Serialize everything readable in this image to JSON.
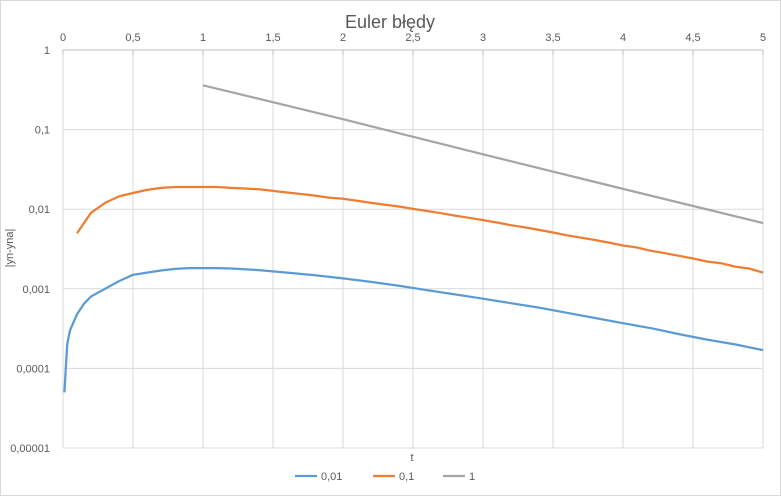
{
  "chart_data": {
    "type": "line",
    "title": "Euler błędy",
    "xlabel": "t",
    "ylabel": "|yn-yna|",
    "y_scale": "log10",
    "xlim": [
      0,
      5
    ],
    "ylim": [
      1e-05,
      1
    ],
    "x_ticks": [
      "0",
      "0,5",
      "1",
      "1,5",
      "2",
      "2,5",
      "3",
      "3,5",
      "4",
      "4,5",
      "5"
    ],
    "y_ticks": [
      "1",
      "0,1",
      "0,01",
      "0,001",
      "0,0001",
      "0,00001"
    ],
    "grid": true,
    "legend_position": "bottom",
    "series": [
      {
        "name": "0,01",
        "color": "#5B9BD5",
        "x": [
          0.01,
          0.02,
          0.03,
          0.05,
          0.1,
          0.15,
          0.2,
          0.3,
          0.4,
          0.5,
          0.6,
          0.7,
          0.8,
          0.9,
          1.0,
          1.1,
          1.2,
          1.4,
          1.6,
          1.8,
          2.0,
          2.2,
          2.4,
          2.6,
          2.8,
          3.0,
          3.2,
          3.4,
          3.6,
          3.8,
          4.0,
          4.2,
          4.4,
          4.6,
          4.8,
          5.0
        ],
        "y": [
          5e-05,
          0.0001,
          0.0002,
          0.0003,
          0.00048,
          0.00065,
          0.0008,
          0.001,
          0.00125,
          0.0015,
          0.0016,
          0.0017,
          0.00178,
          0.00182,
          0.00182,
          0.00182,
          0.0018,
          0.00172,
          0.0016,
          0.00148,
          0.00135,
          0.00122,
          0.00109,
          0.00096,
          0.00085,
          0.00075,
          0.00066,
          0.00058,
          0.0005,
          0.00043,
          0.00037,
          0.00032,
          0.00027,
          0.00023,
          0.0002,
          0.00017
        ]
      },
      {
        "name": "0,1",
        "color": "#ED7D31",
        "x": [
          0.1,
          0.2,
          0.3,
          0.4,
          0.5,
          0.6,
          0.7,
          0.8,
          0.9,
          1.0,
          1.1,
          1.2,
          1.3,
          1.4,
          1.5,
          1.6,
          1.7,
          1.8,
          1.9,
          2.0,
          2.1,
          2.2,
          2.3,
          2.4,
          2.5,
          2.6,
          2.7,
          2.8,
          2.9,
          3.0,
          3.1,
          3.2,
          3.3,
          3.4,
          3.5,
          3.6,
          3.7,
          3.8,
          3.9,
          4.0,
          4.1,
          4.2,
          4.3,
          4.4,
          4.5,
          4.6,
          4.7,
          4.8,
          4.9,
          5.0
        ],
        "y": [
          0.005,
          0.009,
          0.012,
          0.0145,
          0.016,
          0.0175,
          0.0185,
          0.019,
          0.019,
          0.019,
          0.019,
          0.0185,
          0.0182,
          0.0178,
          0.017,
          0.0162,
          0.0155,
          0.0148,
          0.014,
          0.0135,
          0.0128,
          0.012,
          0.0114,
          0.0108,
          0.0101,
          0.0095,
          0.0089,
          0.0083,
          0.0078,
          0.0073,
          0.0068,
          0.0063,
          0.0059,
          0.0055,
          0.0051,
          0.0047,
          0.0044,
          0.0041,
          0.0038,
          0.0035,
          0.0033,
          0.003,
          0.0028,
          0.0026,
          0.0024,
          0.0022,
          0.0021,
          0.0019,
          0.0018,
          0.0016
        ]
      },
      {
        "name": "1",
        "color": "#A5A5A5",
        "x": [
          1,
          2,
          3,
          4,
          5
        ],
        "y": [
          0.36,
          0.135,
          0.049,
          0.018,
          0.0067
        ]
      }
    ]
  }
}
